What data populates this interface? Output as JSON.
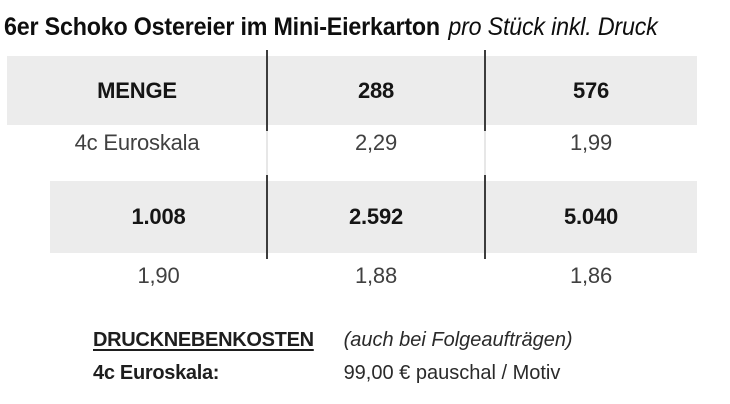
{
  "title": {
    "main": "6er Schoko Ostereier im Mini-Eierkarton",
    "suffix": "pro Stück inkl. Druck"
  },
  "colors": {
    "header_bg": "#ececec",
    "divider": "#3d3d3d",
    "title_text": "#0e0e0e",
    "body_text": "#404040"
  },
  "table1": {
    "header": [
      "MENGE",
      "288",
      "576"
    ],
    "row": [
      "4c Euroskala",
      "2,29",
      "1,99"
    ]
  },
  "table2": {
    "header": [
      "1.008",
      "2.592",
      "5.040"
    ],
    "row": [
      "1,90",
      "1,88",
      "1,86"
    ]
  },
  "footer": {
    "label1": "DRUCKNEBENKOSTEN",
    "note1": "(auch bei Folgeaufträgen)",
    "label2": "4c Euroskala:",
    "value2": "99,00 € pauschal / Motiv"
  }
}
